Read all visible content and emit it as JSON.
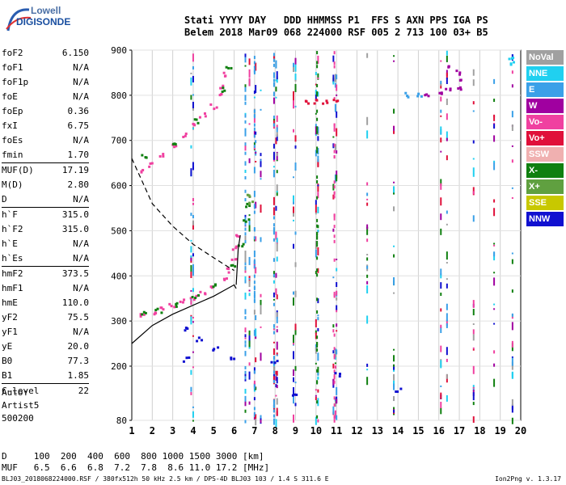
{
  "logo": {
    "line1": "Lowell",
    "line2": "DIGISONDE"
  },
  "header": {
    "labels": "Stati YYYY DAY   DDD HHMMSS P1  FFS S AXN PPS IGA PS",
    "values": "Belem 2018 Mar09 068 224000 RSF 005 2 713 100 03+ B5"
  },
  "params_a": [
    {
      "k": "foF2",
      "v": "6.150"
    },
    {
      "k": "foF1",
      "v": "N/A"
    },
    {
      "k": "foF1p",
      "v": "N/A"
    },
    {
      "k": "foE",
      "v": "N/A"
    },
    {
      "k": "foEp",
      "v": "0.36"
    },
    {
      "k": "fxI",
      "v": "6.75"
    },
    {
      "k": "foEs",
      "v": "N/A"
    },
    {
      "k": "fmin",
      "v": "1.70"
    }
  ],
  "params_b": [
    {
      "k": "MUF(D)",
      "v": "17.19"
    },
    {
      "k": "M(D)",
      "v": "2.80"
    },
    {
      "k": "D",
      "v": "N/A"
    }
  ],
  "params_c": [
    {
      "k": "h`F",
      "v": "315.0"
    },
    {
      "k": "h`F2",
      "v": "315.0"
    },
    {
      "k": "h`E",
      "v": "N/A"
    },
    {
      "k": "h`Es",
      "v": "N/A"
    }
  ],
  "params_d": [
    {
      "k": "hmF2",
      "v": "373.5"
    },
    {
      "k": "hmF1",
      "v": "N/A"
    },
    {
      "k": "hmE",
      "v": "110.0"
    },
    {
      "k": "yF2",
      "v": "75.5"
    },
    {
      "k": "yF1",
      "v": "N/A"
    },
    {
      "k": "yE",
      "v": "20.0"
    },
    {
      "k": "B0",
      "v": "77.3"
    },
    {
      "k": "B1",
      "v": "1.85"
    }
  ],
  "params_e": [
    {
      "k": "C-level",
      "v": "22"
    }
  ],
  "auto": {
    "l1": "Auto:",
    "l2": "Artist5",
    "l3": "500200"
  },
  "legend": [
    {
      "label": "NoVal",
      "color": "#a0a0a0"
    },
    {
      "label": "NNE",
      "color": "#20d0f0"
    },
    {
      "label": "E",
      "color": "#3aa0e8"
    },
    {
      "label": "W",
      "color": "#a000a0"
    },
    {
      "label": "Vo-",
      "color": "#f040a0"
    },
    {
      "label": "Vo+",
      "color": "#e0103a"
    },
    {
      "label": "SSW",
      "color": "#f0b0b0"
    },
    {
      "label": "X-",
      "color": "#108010"
    },
    {
      "label": "X+",
      "color": "#60a040"
    },
    {
      "label": "SSE",
      "color": "#c8c800"
    },
    {
      "label": "NNW",
      "color": "#1010d0"
    }
  ],
  "table": {
    "row1": "D     100  200  400  600  800 1000 1500 3000 [km]",
    "row2": "MUF   6.5  6.6  6.8  7.2  7.8  8.6 11.0 17.2 [MHz]"
  },
  "footer": "BLJ03_2018068224000.RSF / 380fx512h 50 kHz 2.5 km / DPS-4D BLJ03 103 / 1.4 S 311.6 E",
  "version": "Ion2Png v. 1.3.17",
  "chart_data": {
    "type": "scatter",
    "xlabel": "",
    "ylabel": "",
    "xlim": [
      1,
      20
    ],
    "ylim": [
      80,
      900
    ],
    "x_ticks": [
      1,
      2,
      3,
      4,
      5,
      6,
      7,
      8,
      9,
      10,
      11,
      12,
      13,
      14,
      15,
      16,
      17,
      18,
      19,
      20
    ],
    "y_ticks": [
      80,
      200,
      300,
      400,
      500,
      600,
      700,
      800,
      900
    ],
    "series": [
      {
        "name": "Vo-",
        "color": "#f040a0",
        "points": [
          [
            1.5,
            312
          ],
          [
            2,
            318
          ],
          [
            2.5,
            325
          ],
          [
            3,
            333
          ],
          [
            3.5,
            342
          ],
          [
            4,
            352
          ],
          [
            4.5,
            362
          ],
          [
            5,
            375
          ],
          [
            5.5,
            392
          ],
          [
            5.8,
            412
          ],
          [
            6,
            435
          ],
          [
            6.1,
            460
          ],
          [
            6.15,
            490
          ],
          [
            1.6,
            630
          ],
          [
            2,
            645
          ],
          [
            2.5,
            665
          ],
          [
            3,
            690
          ],
          [
            3.5,
            710
          ],
          [
            4,
            735
          ],
          [
            4.5,
            755
          ],
          [
            5,
            775
          ],
          [
            5.3,
            800
          ],
          [
            5.5,
            820
          ],
          [
            5.65,
            845
          ]
        ]
      },
      {
        "name": "X-",
        "color": "#108010",
        "points": [
          [
            1.55,
            315
          ],
          [
            2.3,
            322
          ],
          [
            3.2,
            336
          ],
          [
            4.1,
            355
          ],
          [
            5.1,
            378
          ],
          [
            5.9,
            420
          ],
          [
            6.3,
            470
          ],
          [
            6.6,
            520
          ],
          [
            6.7,
            555
          ],
          [
            1.55,
            665
          ],
          [
            3.2,
            695
          ],
          [
            4.2,
            742
          ],
          [
            5.4,
            812
          ],
          [
            5.75,
            860
          ]
        ]
      },
      {
        "name": "X+",
        "color": "#60a040",
        "points": [
          [
            6.75,
            560
          ],
          [
            6.8,
            575
          ]
        ]
      },
      {
        "name": "Vo+",
        "color": "#e0103a",
        "points": [
          [
            9.5,
            785
          ],
          [
            10,
            786
          ],
          [
            10.5,
            786
          ],
          [
            11,
            786
          ]
        ]
      },
      {
        "name": "W",
        "color": "#a000a0",
        "points": [
          [
            15.5,
            801
          ],
          [
            16,
            805
          ],
          [
            16.5,
            810
          ],
          [
            17,
            815
          ],
          [
            17.2,
            830
          ],
          [
            17.0,
            850
          ],
          [
            16.6,
            860
          ]
        ]
      },
      {
        "name": "E",
        "color": "#3aa0e8",
        "points": [
          [
            14.5,
            800
          ],
          [
            15,
            800
          ]
        ]
      },
      {
        "name": "NNW",
        "color": "#1010d0",
        "points": [
          [
            3.6,
            280
          ],
          [
            4.3,
            260
          ],
          [
            5.1,
            240
          ],
          [
            3.7,
            215
          ],
          [
            6,
            220
          ],
          [
            8,
            210
          ],
          [
            11,
            180
          ],
          [
            14,
            145
          ],
          [
            9,
            140
          ]
        ]
      },
      {
        "name": "NNE",
        "color": "#20d0f0",
        "points": [
          [
            19.6,
            880
          ],
          [
            19.6,
            870
          ]
        ]
      }
    ],
    "profile_solid": [
      [
        1.0,
        250
      ],
      [
        2,
        290
      ],
      [
        3,
        315
      ],
      [
        4,
        335
      ],
      [
        5,
        355
      ],
      [
        5.6,
        370
      ],
      [
        6.0,
        380
      ],
      [
        6.1,
        372
      ]
    ],
    "profile_dashed": [
      [
        1.0,
        660
      ],
      [
        1.5,
        610
      ],
      [
        2,
        560
      ],
      [
        3,
        510
      ],
      [
        4,
        470
      ],
      [
        5,
        440
      ],
      [
        5.7,
        420
      ],
      [
        6.0,
        412
      ]
    ],
    "trace_upper": [
      [
        6.1,
        380
      ],
      [
        6.15,
        420
      ],
      [
        6.2,
        460
      ],
      [
        6.3,
        490
      ]
    ]
  }
}
